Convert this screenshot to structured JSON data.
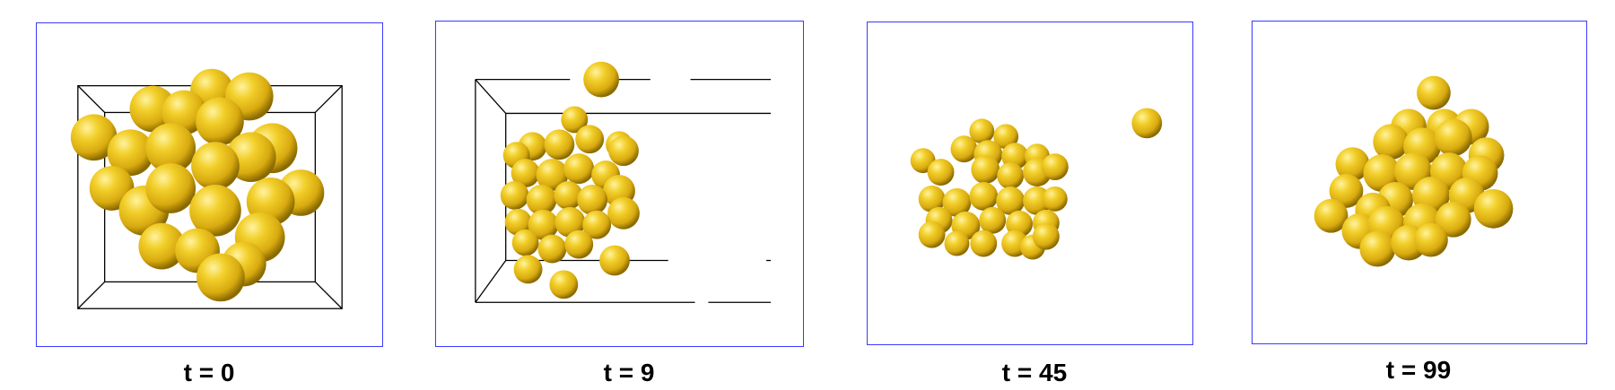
{
  "colors": {
    "frame": "#3a3aff",
    "sphere_light": "#fff3a0",
    "sphere_mid": "#e8c21a",
    "sphere_dark": "#8a6a00",
    "box_edge": "#000000"
  },
  "panels": [
    {
      "label": "t = 0"
    },
    {
      "label": "t = 9"
    },
    {
      "label": "t = 45"
    },
    {
      "label": "t = 99"
    }
  ]
}
